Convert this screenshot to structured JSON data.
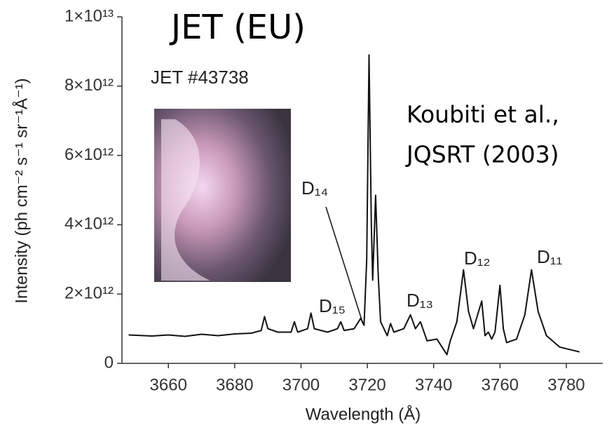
{
  "chart_data": {
    "type": "line",
    "title": "JET (EU)",
    "annotations": [
      "JET  #43738",
      "Koubiti et al.,",
      "JQSRT (2003)",
      "D₁₄",
      "D₁₅",
      "D₁₃",
      "D₁₂",
      "D₁₁"
    ],
    "x_label": "Wavelength (Å)",
    "y_label": "Intensity (ph cm⁻² s⁻¹ sr⁻¹Å⁻¹)",
    "xlim": [
      3646,
      3791
    ],
    "ylim": [
      0,
      10000000000000.0
    ],
    "xticks": [
      3660,
      3680,
      3700,
      3720,
      3740,
      3760,
      3780
    ],
    "yticks": [
      0,
      {
        "value": 2000000000000.0,
        "label": "2×10¹²"
      },
      {
        "value": 4000000000000.0,
        "label": "4×10¹²"
      },
      {
        "value": 6000000000000.0,
        "label": "6×10¹²"
      },
      {
        "value": 8000000000000.0,
        "label": "8×10¹²"
      },
      {
        "value": 10000000000000.0,
        "label": "1×10¹³"
      }
    ],
    "grid": false,
    "series": [
      {
        "color": "#111111",
        "x": [
          3648,
          3655,
          3660,
          3665,
          3670,
          3675,
          3680,
          3685,
          3688,
          3689,
          3690,
          3693,
          3697,
          3698,
          3699,
          3702,
          3703,
          3704,
          3708,
          3711,
          3712,
          3713,
          3716,
          3718,
          3719,
          3719.8,
          3720.5,
          3721.2,
          3721.6,
          3722.5,
          3723.3,
          3724,
          3726,
          3727,
          3728,
          3731,
          3733,
          3734.5,
          3736,
          3738,
          3741,
          3744,
          3745,
          3747,
          3749,
          3750.5,
          3752,
          3754.5,
          3755.5,
          3756.5,
          3757.5,
          3758.5,
          3760,
          3761,
          3762,
          3765,
          3767.5,
          3769.5,
          3771.5,
          3774,
          3778,
          3784
        ],
        "values": [
          820000000000.0,
          790000000000.0,
          820000000000.0,
          780000000000.0,
          840000000000.0,
          800000000000.0,
          850000000000.0,
          870000000000.0,
          950000000000.0,
          1350000000000.0,
          1000000000000.0,
          900000000000.0,
          900000000000.0,
          1200000000000.0,
          900000000000.0,
          1000000000000.0,
          1450000000000.0,
          1000000000000.0,
          900000000000.0,
          1000000000000.0,
          1200000000000.0,
          950000000000.0,
          1000000000000.0,
          1300000000000.0,
          1100000000000.0,
          3000000000000.0,
          8900000000000.0,
          4000000000000.0,
          2400000000000.0,
          4850000000000.0,
          2500000000000.0,
          1200000000000.0,
          800000000000.0,
          1150000000000.0,
          900000000000.0,
          1000000000000.0,
          1400000000000.0,
          1000000000000.0,
          1200000000000.0,
          650000000000.0,
          700000000000.0,
          250000000000.0,
          650000000000.0,
          1200000000000.0,
          2700000000000.0,
          1500000000000.0,
          1000000000000.0,
          1800000000000.0,
          800000000000.0,
          900000000000.0,
          700000000000.0,
          900000000000.0,
          2250000000000.0,
          1000000000000.0,
          600000000000.0,
          700000000000.0,
          1400000000000.0,
          2700000000000.0,
          1500000000000.0,
          800000000000.0,
          470000000000.0,
          330000000000.0
        ]
      }
    ]
  }
}
